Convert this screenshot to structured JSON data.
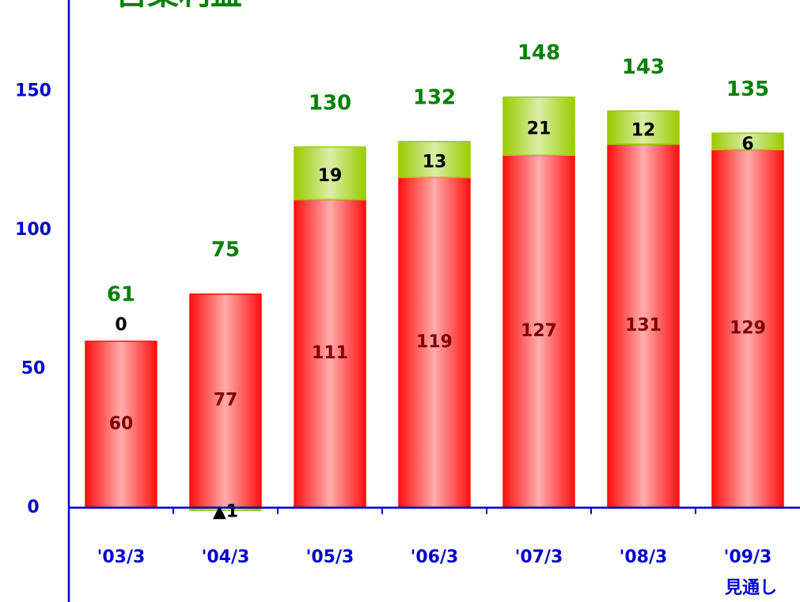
{
  "chart_data": {
    "type": "stacked_bar",
    "title": "営業利益",
    "categories": [
      "'03/3",
      "'04/3",
      "'05/3",
      "'06/3",
      "'07/3",
      "'08/3",
      "'09/3"
    ],
    "annotation": "見通し",
    "series": [
      {
        "name": "base",
        "color": "#ff1010",
        "label_color": "#800000",
        "values": [
          60,
          77,
          111,
          119,
          127,
          131,
          129
        ]
      },
      {
        "name": "increase",
        "color": "#99cc00",
        "label_color": "#000000",
        "values": [
          0,
          -1,
          19,
          13,
          21,
          12,
          6
        ],
        "value_labels": [
          "0",
          "▲1",
          "19",
          "13",
          "21",
          "12",
          "6"
        ]
      }
    ],
    "totals": [
      61,
      75,
      130,
      132,
      148,
      143,
      135
    ],
    "totals_color": "#008000",
    "axis_color": "#0000cc",
    "ylim": [
      -34,
      183
    ],
    "yticks": [
      0,
      50,
      100,
      150
    ]
  }
}
